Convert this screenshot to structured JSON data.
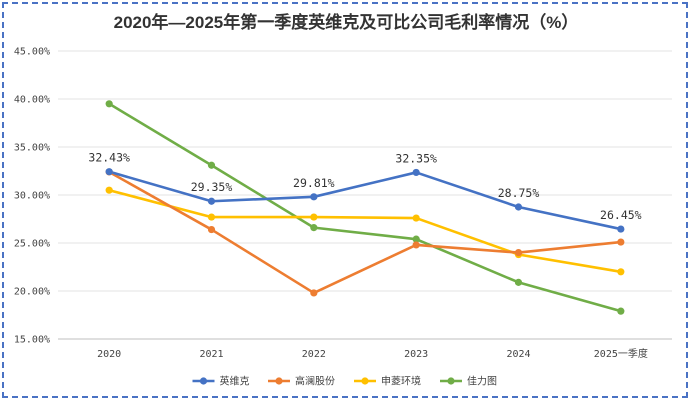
{
  "chart_data": {
    "type": "line",
    "title": "2020年—2025年第一季度英维克及可比公司毛利率情况（%）",
    "categories": [
      "2020",
      "2021",
      "2022",
      "2023",
      "2024",
      "2025一季度"
    ],
    "y_ticks": [
      "15.00%",
      "20.00%",
      "25.00%",
      "30.00%",
      "35.00%",
      "40.00%",
      "45.00%"
    ],
    "ylim": [
      15,
      45
    ],
    "grid": true,
    "legend_position": "bottom",
    "series": [
      {
        "name": "英维克",
        "color": "#4472c4",
        "values": [
          32.43,
          29.35,
          29.81,
          32.35,
          28.75,
          26.45
        ],
        "labels": [
          "32.43%",
          "29.35%",
          "29.81%",
          "32.35%",
          "28.75%",
          "26.45%"
        ]
      },
      {
        "name": "高澜股份",
        "color": "#ed7d31",
        "values": [
          32.4,
          26.4,
          19.8,
          24.8,
          24.0,
          25.1
        ]
      },
      {
        "name": "申菱环境",
        "color": "#ffc000",
        "values": [
          30.5,
          27.7,
          27.7,
          27.6,
          23.8,
          22.0
        ]
      },
      {
        "name": "佳力图",
        "color": "#70ad47",
        "values": [
          39.5,
          33.1,
          26.6,
          25.4,
          20.9,
          17.9
        ]
      }
    ]
  }
}
